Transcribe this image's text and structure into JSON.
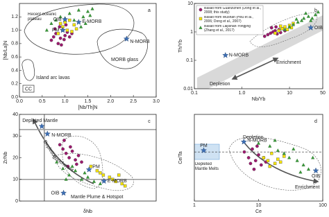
{
  "chart_data": [
    {
      "type": "scatter",
      "panel": "a",
      "xlabel": "[Nb/Th]N",
      "ylabel": "[Nb/La]N",
      "xlim": [
        0,
        3
      ],
      "ylim": [
        0,
        1.4
      ],
      "xticks": [
        {
          "value": 0,
          "label": "0.0"
        },
        0.5,
        {
          "value": 1,
          "label": "1.0"
        },
        1.5,
        {
          "value": 2,
          "label": "2.0"
        },
        2.5,
        {
          "value": 3,
          "label": "3.0"
        }
      ],
      "yticks": [
        {
          "value": 0,
          "label": "0.0"
        },
        0.2,
        0.4,
        0.6,
        0.8,
        {
          "value": 1,
          "label": "1.0"
        },
        1.2
      ],
      "series": [
        {
          "marker": "circle",
          "color": "#9c1a6e",
          "x": [
            0.7,
            0.75,
            0.8,
            0.85,
            0.9,
            0.95,
            1.0,
            1.05,
            1.1,
            0.78,
            0.88,
            0.98,
            1.15,
            0.92,
            1.02
          ],
          "y": [
            0.85,
            0.9,
            0.95,
            0.8,
            0.88,
            1.0,
            0.92,
            0.97,
            0.9,
            1.02,
            1.05,
            0.86,
            0.95,
            0.78,
            1.08
          ]
        },
        {
          "marker": "square",
          "color": "#f5e400",
          "x": [
            0.85,
            0.95,
            1.05,
            1.15,
            1.2,
            1.0,
            1.1,
            1.25,
            0.9
          ],
          "y": [
            0.95,
            1.05,
            1.0,
            0.98,
            1.08,
            1.12,
            1.15,
            1.02,
            1.1
          ]
        },
        {
          "marker": "triangle",
          "color": "#3a9a3a",
          "x": [
            0.6,
            0.7,
            0.9,
            1.1,
            1.3,
            1.4,
            1.5,
            1.6,
            1.2,
            1.0,
            0.8,
            1.35,
            1.45,
            1.55
          ],
          "y": [
            1.0,
            1.1,
            1.2,
            1.25,
            1.3,
            1.2,
            1.28,
            1.32,
            1.15,
            1.18,
            1.15,
            1.05,
            1.1,
            1.22
          ]
        }
      ],
      "references": {
        "color": "#3d6fb5",
        "points": [
          {
            "label": "PM",
            "x": 0.95,
            "y": 1.0
          },
          {
            "label": "E-MORB",
            "x": 1.3,
            "y": 1.12
          },
          {
            "label": "OIB",
            "x": 1.0,
            "y": 1.16
          },
          {
            "label": "N-MORB",
            "x": 2.35,
            "y": 0.87
          }
        ]
      },
      "annotations": [
        "Recent oceanic plateau",
        "MORB glass",
        "Island arc lavas",
        "CC"
      ]
    },
    {
      "type": "scatter",
      "panel": "b",
      "xlabel": "Nb/Yb",
      "ylabel": "Th/Yb",
      "xlog": true,
      "ylog": true,
      "xlim": [
        0.1,
        50
      ],
      "ylim": [
        0.01,
        10
      ],
      "xticks": [
        0.1,
        {
          "value": 1,
          "label": "1.0"
        },
        10,
        50
      ],
      "yticks": [
        0.01,
        0.1,
        1,
        10
      ],
      "series": [
        {
          "name": "Basalt from Guanzizhen (Dong et al., 2008; this study)",
          "marker": "circle",
          "color": "#9c1a6e",
          "x": [
            3,
            3.5,
            4,
            4.5,
            5,
            5.5,
            6,
            7,
            8,
            4.2,
            5.2,
            6.5
          ],
          "y": [
            0.7,
            0.8,
            0.9,
            1.0,
            1.1,
            0.85,
            1.2,
            1.3,
            1.1,
            1.4,
            1.5,
            0.95
          ]
        },
        {
          "name": "Basalt from Wushan (Hou et al., 2006; Dong et al., 2007)",
          "marker": "square",
          "color": "#f5e400",
          "x": [
            5,
            6,
            7,
            8,
            9,
            10,
            12,
            6.5,
            11
          ],
          "y": [
            0.9,
            1.1,
            1.3,
            1.5,
            1.2,
            1.7,
            2.0,
            1.6,
            1.4
          ]
        },
        {
          "name": "Basalt from Laijishan-Yongjing (Zhang et al., 2017)",
          "marker": "triangle",
          "color": "#3a9a3a",
          "x": [
            8,
            10,
            12,
            15,
            18,
            20,
            25,
            30,
            35,
            40,
            14,
            22,
            28
          ],
          "y": [
            1.2,
            1.5,
            1.8,
            2.2,
            2.5,
            3.0,
            3.5,
            3.0,
            4.0,
            5.0,
            2.8,
            4.5,
            2.5
          ]
        }
      ],
      "references": {
        "color": "#3d6fb5",
        "points": [
          {
            "label": "N-MORB",
            "x": 0.45,
            "y": 0.15
          },
          {
            "label": "OIB",
            "x": 28,
            "y": 1.4
          }
        ]
      },
      "annotations": [
        "Depletion",
        "Enrichment"
      ]
    },
    {
      "type": "scatter",
      "panel": "c",
      "xlabel": "δNb",
      "ylabel": "Zr/Nb",
      "xlim": [
        -0.4,
        1.8
      ],
      "ylim": [
        0,
        40
      ],
      "yticks": [
        0,
        10,
        20,
        30,
        40
      ],
      "hlines": [
        10,
        33
      ],
      "vlines": [
        0
      ],
      "series": [
        {
          "marker": "circle",
          "color": "#9c1a6e",
          "x": [
            0.25,
            0.3,
            0.35,
            0.4,
            0.45,
            0.5,
            0.55,
            0.6,
            0.32,
            0.42,
            0.52,
            0.38
          ],
          "y": [
            26,
            24,
            22,
            20,
            23,
            19,
            21,
            18,
            28,
            25,
            17,
            16
          ]
        },
        {
          "marker": "square",
          "color": "#f5e400",
          "x": [
            0.75,
            0.85,
            0.95,
            1.05,
            1.15,
            1.25,
            1.3,
            0.9,
            1.1,
            1.2
          ],
          "y": [
            16,
            14,
            12,
            11,
            9,
            8,
            7,
            13,
            10,
            12
          ]
        },
        {
          "marker": "triangle",
          "color": "#3a9a3a",
          "x": [
            0.2,
            0.3,
            0.4,
            0.5,
            0.6,
            0.7,
            0.8,
            0.9,
            0.45,
            0.65,
            0.35
          ],
          "y": [
            18,
            15,
            12,
            14,
            10,
            11,
            9,
            8,
            16,
            13,
            10
          ]
        }
      ],
      "references": {
        "color": "#3d6fb5",
        "points": [
          {
            "label": "Depleted Mantle",
            "x": -0.04,
            "y": 34.5
          },
          {
            "label": "N-MORB",
            "x": 0.05,
            "y": 31
          },
          {
            "label": "PM",
            "x": 0.72,
            "y": 14.5
          },
          {
            "label": "E-MORB",
            "x": 0.96,
            "y": 9.2
          },
          {
            "label": "OIB",
            "x": 0.31,
            "y": 3.7
          }
        ]
      },
      "annotations": [
        "Depletion",
        "Enrichment",
        "Mantle Plume & Hotspot"
      ]
    },
    {
      "type": "scatter",
      "panel": "d",
      "xlabel": "Ce",
      "ylabel": "Ce/Ta",
      "xlog": true,
      "xlim": [
        1,
        100
      ],
      "ylim": [
        0,
        60
      ],
      "xticks": [
        1,
        10,
        100
      ],
      "hlines": [
        34
      ],
      "series": [
        {
          "marker": "circle",
          "color": "#9c1a6e",
          "x": [
            6,
            7,
            8,
            9,
            10,
            11,
            12,
            8.5,
            9.5,
            13,
            7.5
          ],
          "y": [
            34,
            30,
            36,
            28,
            32,
            25,
            30,
            22,
            38,
            27,
            26
          ]
        },
        {
          "marker": "square",
          "color": "#f5e400",
          "x": [
            12,
            14,
            16,
            18,
            20,
            25,
            15,
            22
          ],
          "y": [
            30,
            28,
            33,
            26,
            29,
            31,
            24,
            27
          ]
        },
        {
          "marker": "triangle",
          "color": "#3a9a3a",
          "x": [
            10,
            15,
            20,
            25,
            30,
            40,
            50,
            60,
            70,
            35,
            45,
            18
          ],
          "y": [
            40,
            38,
            35,
            33,
            30,
            28,
            25,
            22,
            30,
            36,
            20,
            42
          ]
        }
      ],
      "references": {
        "color": "#3d6fb5",
        "points": [
          {
            "label": "PM",
            "x": 1.4,
            "y": 35
          },
          {
            "label": "N-MORB",
            "x": 5.9,
            "y": 41
          },
          {
            "label": "OIB",
            "x": 78,
            "y": 21
          }
        ]
      },
      "annotations": [
        "Depletion",
        "Enrichment",
        "Depleted Mantle Melts"
      ]
    }
  ]
}
